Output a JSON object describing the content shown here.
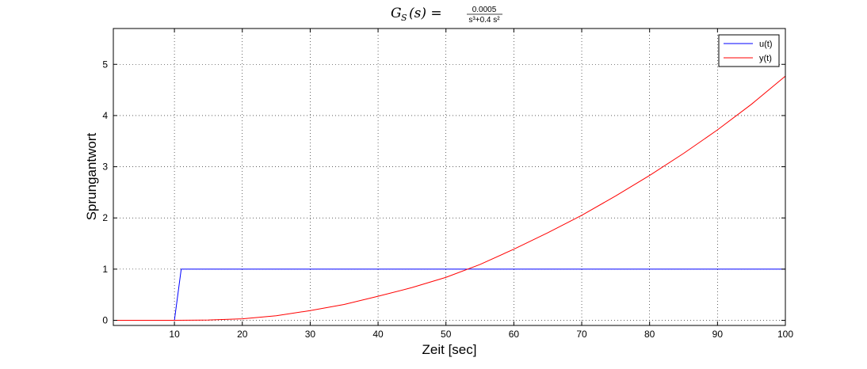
{
  "chart_data": {
    "type": "line",
    "title": {
      "lhs": "G",
      "lhs_subscript": "S",
      "lhs_arg": "(s) =",
      "numerator": "0.0005",
      "denominator": "s³+0.4 s²"
    },
    "xlabel": "Zeit [sec]",
    "ylabel": "Sprungantwort",
    "xlim": [
      1,
      100
    ],
    "ylim": [
      -0.1,
      5.7
    ],
    "xticks": [
      10,
      20,
      30,
      40,
      50,
      60,
      70,
      80,
      90,
      100
    ],
    "yticks": [
      0,
      1,
      2,
      3,
      4,
      5
    ],
    "grid": true,
    "grid_style": "dotted",
    "legend_position": "top-right",
    "series": [
      {
        "name": "u(t)",
        "color": "#0000ff",
        "x": [
          1,
          10,
          11,
          100
        ],
        "y": [
          0,
          0,
          1,
          1
        ]
      },
      {
        "name": "y(t)",
        "color": "#ff0000",
        "x": [
          1,
          10,
          15,
          20,
          25,
          30,
          35,
          40,
          45,
          50,
          55,
          60,
          65,
          70,
          75,
          80,
          85,
          90,
          95,
          100
        ],
        "y": [
          0,
          0,
          0.006,
          0.03,
          0.09,
          0.19,
          0.31,
          0.47,
          0.64,
          0.84,
          1.09,
          1.39,
          1.71,
          2.05,
          2.43,
          2.83,
          3.26,
          3.72,
          4.22,
          4.77
        ]
      }
    ]
  }
}
